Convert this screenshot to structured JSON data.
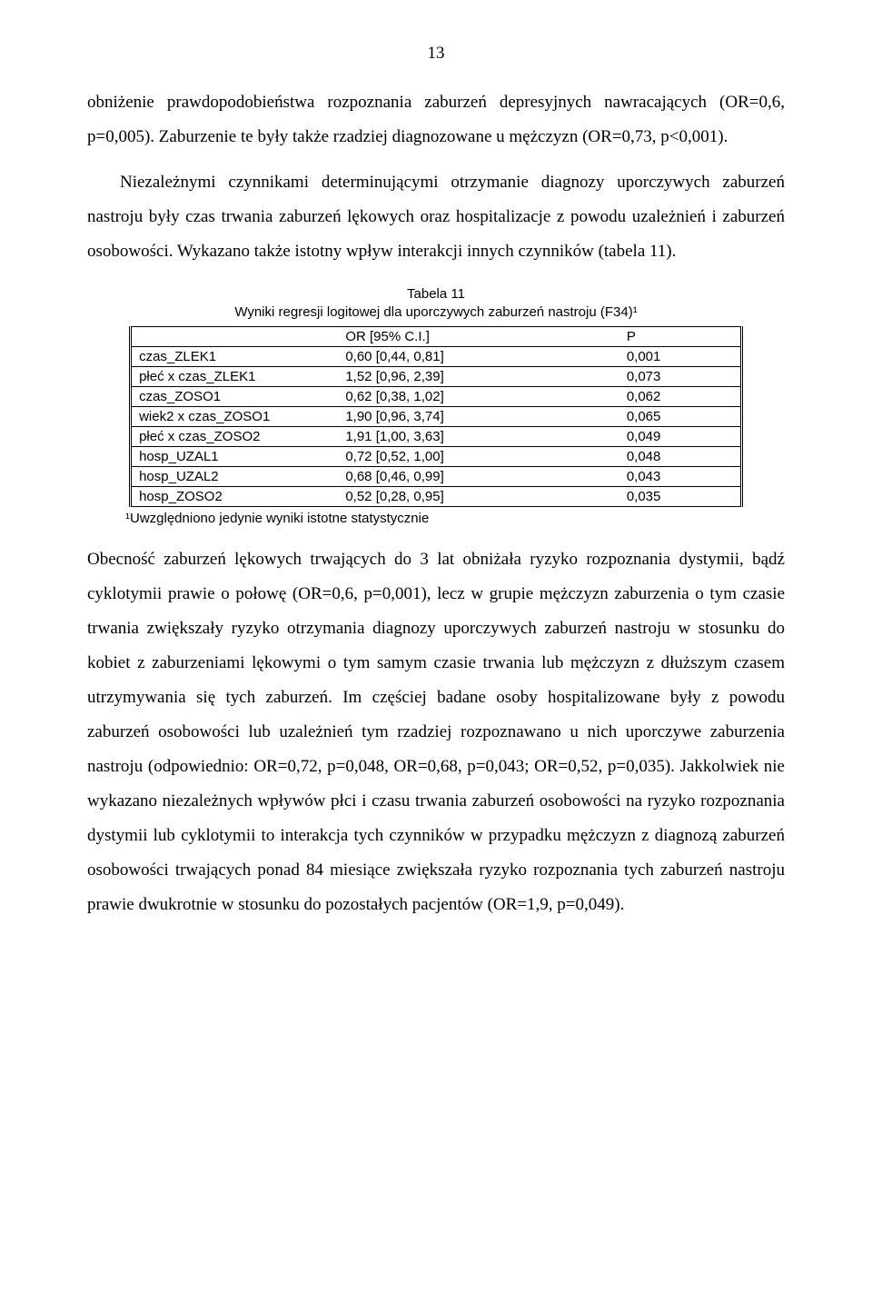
{
  "page_number": "13",
  "paragraphs": {
    "p1": "obniżenie prawdopodobieństwa rozpoznania zaburzeń depresyjnych nawracających (OR=0,6, p=0,005). Zaburzenie te były także rzadziej diagnozowane u mężczyzn (OR=0,73, p<0,001).",
    "p2": "Niezależnymi czynnikami determinującymi otrzymanie diagnozy uporczywych zaburzeń nastroju były czas trwania zaburzeń lękowych oraz hospitalizacje z powodu uzależnień i zaburzeń osobowości. Wykazano także istotny wpływ interakcji innych czynników (tabela 11).",
    "p3": "Obecność zaburzeń lękowych trwających do 3 lat obniżała ryzyko rozpoznania dystymii, bądź cyklotymii prawie o połowę (OR=0,6, p=0,001), lecz w grupie mężczyzn zaburzenia o tym czasie trwania zwiększały ryzyko otrzymania diagnozy uporczywych zaburzeń nastroju w stosunku do kobiet z zaburzeniami lękowymi o tym samym czasie trwania lub mężczyzn z dłuższym czasem utrzymywania się tych zaburzeń. Im częściej badane osoby hospitalizowane były z powodu zaburzeń osobowości lub uzależnień tym rzadziej rozpoznawano u nich uporczywe zaburzenia nastroju (odpowiednio: OR=0,72, p=0,048, OR=0,68, p=0,043; OR=0,52, p=0,035). Jakkolwiek nie wykazano niezależnych wpływów płci i czasu trwania zaburzeń osobowości na ryzyko rozpoznania dystymii lub cyklotymii to interakcja tych czynników w przypadku mężczyzn z diagnozą zaburzeń osobowości trwających ponad 84 miesiące zwiększała ryzyko rozpoznania tych zaburzeń nastroju prawie dwukrotnie w stosunku do pozostałych pacjentów (OR=1,9, p=0,049)."
  },
  "table11": {
    "title_line1": "Tabela 11",
    "title_line2": "Wyniki regresji logitowej dla uporczywych zaburzeń nastroju (F34)¹",
    "columns": {
      "c1": "",
      "c2": "OR [95% C.I.]",
      "c3": "P"
    },
    "rows": [
      {
        "c1": "czas_ZLEK1",
        "c2": "0,60 [0,44, 0,81]",
        "c3": "0,001"
      },
      {
        "c1": "płeć x czas_ZLEK1",
        "c2": "1,52 [0,96, 2,39]",
        "c3": "0,073"
      },
      {
        "c1": "czas_ZOSO1",
        "c2": "0,62 [0,38, 1,02]",
        "c3": "0,062"
      },
      {
        "c1": "wiek2 x czas_ZOSO1",
        "c2": "1,90 [0,96, 3,74]",
        "c3": "0,065"
      },
      {
        "c1": "płeć x czas_ZOSO2",
        "c2": "1,91 [1,00, 3,63]",
        "c3": "0,049"
      },
      {
        "c1": "hosp_UZAL1",
        "c2": "0,72 [0,52, 1,00]",
        "c3": "0,048"
      },
      {
        "c1": "hosp_UZAL2",
        "c2": "0,68 [0,46, 0,99]",
        "c3": "0,043"
      },
      {
        "c1": "hosp_ZOSO2",
        "c2": "0,52 [0,28, 0,95]",
        "c3": "0,035"
      }
    ],
    "footnote": "¹Uwzględniono jedynie wyniki istotne statystycznie"
  }
}
